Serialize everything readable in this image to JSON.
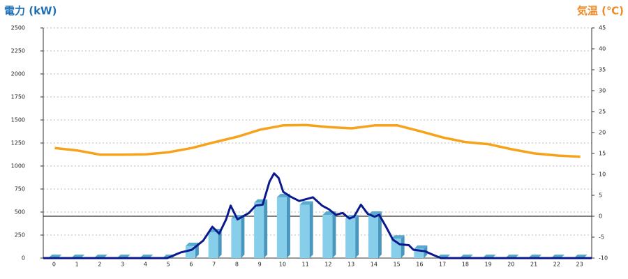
{
  "chart_data": {
    "type": "bar",
    "y_label": "電力 (kW)",
    "y2_label": "気温 (℃)",
    "categories": [
      "0",
      "1",
      "2",
      "3",
      "4",
      "5",
      "6",
      "7",
      "8",
      "9",
      "10",
      "11",
      "12",
      "13",
      "14",
      "15",
      "16",
      "17",
      "18",
      "19",
      "20",
      "21",
      "22",
      "23"
    ],
    "series": [
      {
        "type": "bar",
        "color": "#87ceeb",
        "values": [
          0,
          0,
          0,
          0,
          0,
          0,
          130,
          280,
          430,
          600,
          660,
          580,
          470,
          430,
          470,
          210,
          100,
          0,
          0,
          0,
          0,
          0,
          0,
          0
        ]
      },
      {
        "type": "line",
        "color": "#0a1a8c",
        "x": [
          -0.5,
          4.93,
          5.5,
          6,
          6.5,
          6.9,
          7.2,
          7.5,
          7.7,
          8,
          8.5,
          8.8,
          9.1,
          9.4,
          9.6,
          9.8,
          10,
          10.3,
          10.7,
          11,
          11.3,
          11.7,
          12,
          12.3,
          12.6,
          12.9,
          13.1,
          13.4,
          13.7,
          14,
          14.2,
          14.5,
          14.8,
          15.1,
          15.5,
          15.7,
          16.2,
          16.6,
          16.9,
          23.5
        ],
        "values": [
          0,
          0,
          60,
          90,
          190,
          340,
          265,
          420,
          570,
          420,
          490,
          570,
          580,
          830,
          920,
          870,
          720,
          670,
          620,
          640,
          660,
          570,
          530,
          470,
          490,
          430,
          450,
          580,
          480,
          450,
          470,
          340,
          200,
          150,
          140,
          90,
          75,
          30,
          0,
          0
        ]
      },
      {
        "type": "line",
        "axis": "y2",
        "color": "#f7a21b",
        "values": [
          16.3,
          15.7,
          14.7,
          14.7,
          14.8,
          15.3,
          16.3,
          17.7,
          19,
          20.7,
          21.7,
          21.8,
          21.3,
          21,
          21.7,
          21.7,
          20.3,
          18.8,
          17.7,
          17.2,
          16,
          15,
          14.5,
          14.2
        ]
      }
    ],
    "ylim": [
      0,
      2500
    ],
    "yticks": [
      0,
      250,
      500,
      750,
      1000,
      1250,
      1500,
      1750,
      2000,
      2250,
      2500
    ],
    "y2lim": [
      -10,
      45
    ],
    "y2ticks": [
      -10,
      -5,
      0,
      5,
      10,
      15,
      20,
      25,
      30,
      35,
      40,
      45
    ],
    "grid": true
  }
}
